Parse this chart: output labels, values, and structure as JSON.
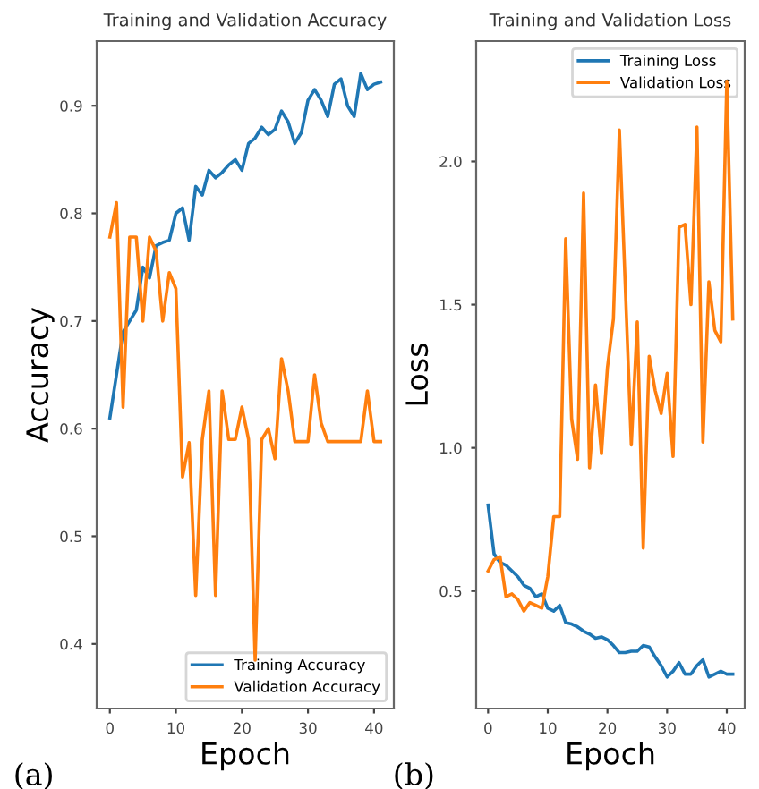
{
  "chart_data": [
    {
      "type": "line",
      "title": "Training and Validation Accuracy",
      "xlabel": "Epoch",
      "ylabel": "Accuracy",
      "annotations": [
        "(a)"
      ],
      "x": [
        0,
        1,
        2,
        3,
        4,
        5,
        6,
        7,
        8,
        9,
        10,
        11,
        12,
        13,
        14,
        15,
        16,
        17,
        18,
        19,
        20,
        21,
        22,
        23,
        24,
        25,
        26,
        27,
        28,
        29,
        30,
        31,
        32,
        33,
        34,
        35,
        36,
        37,
        38,
        39,
        40,
        41
      ],
      "series": [
        {
          "name": "Training Accuracy",
          "color": "#1f77b4",
          "values": [
            0.61,
            0.65,
            0.69,
            0.7,
            0.71,
            0.75,
            0.74,
            0.77,
            0.773,
            0.775,
            0.8,
            0.805,
            0.775,
            0.825,
            0.817,
            0.84,
            0.833,
            0.838,
            0.845,
            0.85,
            0.84,
            0.865,
            0.87,
            0.88,
            0.873,
            0.878,
            0.895,
            0.885,
            0.865,
            0.875,
            0.905,
            0.915,
            0.905,
            0.89,
            0.92,
            0.925,
            0.9,
            0.89,
            0.93,
            0.915,
            0.92,
            0.922
          ]
        },
        {
          "name": "Validation Accuracy",
          "color": "#ff7f0e",
          "values": [
            0.778,
            0.81,
            0.62,
            0.778,
            0.778,
            0.7,
            0.778,
            0.765,
            0.7,
            0.745,
            0.73,
            0.555,
            0.587,
            0.445,
            0.59,
            0.635,
            0.445,
            0.635,
            0.59,
            0.59,
            0.62,
            0.59,
            0.385,
            0.59,
            0.6,
            0.572,
            0.665,
            0.635,
            0.588,
            0.588,
            0.588,
            0.65,
            0.605,
            0.588,
            0.588,
            0.588,
            0.588,
            0.588,
            0.588,
            0.635,
            0.588,
            0.588
          ]
        }
      ],
      "xlim": [
        -2,
        43
      ],
      "ylim": [
        0.34,
        0.96
      ],
      "xticks": [
        0,
        10,
        20,
        30,
        40
      ],
      "yticks": [
        0.4,
        0.5,
        0.6,
        0.7,
        0.8,
        0.9
      ],
      "legend": "bottom right",
      "grid": false
    },
    {
      "type": "line",
      "title": "Training and Validation Loss",
      "xlabel": "Epoch",
      "ylabel": "Loss",
      "annotations": [
        "(b)"
      ],
      "x": [
        0,
        1,
        2,
        3,
        4,
        5,
        6,
        7,
        8,
        9,
        10,
        11,
        12,
        13,
        14,
        15,
        16,
        17,
        18,
        19,
        20,
        21,
        22,
        23,
        24,
        25,
        26,
        27,
        28,
        29,
        30,
        31,
        32,
        33,
        34,
        35,
        36,
        37,
        38,
        39,
        40,
        41
      ],
      "series": [
        {
          "name": "Training Loss",
          "color": "#1f77b4",
          "values": [
            0.8,
            0.63,
            0.6,
            0.59,
            0.57,
            0.55,
            0.52,
            0.51,
            0.48,
            0.49,
            0.44,
            0.43,
            0.45,
            0.39,
            0.385,
            0.375,
            0.36,
            0.35,
            0.335,
            0.34,
            0.33,
            0.31,
            0.285,
            0.285,
            0.29,
            0.29,
            0.31,
            0.305,
            0.27,
            0.24,
            0.2,
            0.22,
            0.25,
            0.21,
            0.21,
            0.24,
            0.26,
            0.2,
            0.21,
            0.22,
            0.21,
            0.21
          ]
        },
        {
          "name": "Validation Loss",
          "color": "#ff7f0e",
          "values": [
            0.57,
            0.61,
            0.62,
            0.48,
            0.49,
            0.47,
            0.43,
            0.46,
            0.45,
            0.44,
            0.55,
            0.76,
            0.76,
            1.73,
            1.1,
            0.96,
            1.89,
            0.93,
            1.22,
            0.98,
            1.28,
            1.45,
            2.11,
            1.56,
            1.01,
            1.44,
            0.65,
            1.32,
            1.2,
            1.12,
            1.26,
            0.97,
            1.77,
            1.78,
            1.5,
            2.12,
            1.02,
            1.58,
            1.41,
            1.37,
            2.28,
            1.45
          ]
        }
      ],
      "xlim": [
        -2,
        43
      ],
      "ylim": [
        0.09,
        2.42
      ],
      "xticks": [
        0,
        10,
        20,
        30,
        40
      ],
      "yticks": [
        0.5,
        {
          "value": 1,
          "label": "1.0"
        },
        1.5,
        {
          "value": 2,
          "label": "2.0"
        }
      ],
      "legend": "top right",
      "grid": false
    }
  ]
}
